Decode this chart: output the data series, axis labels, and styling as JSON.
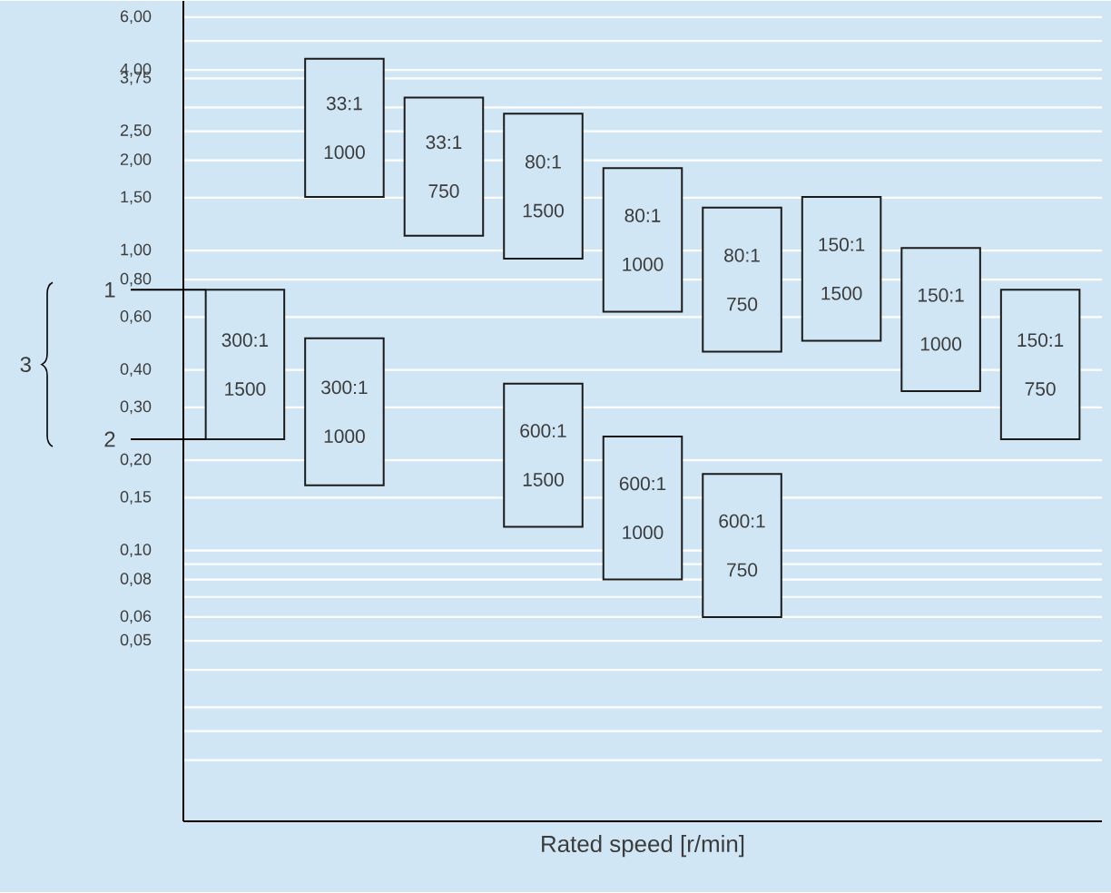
{
  "chart_data": {
    "type": "bar",
    "xlabel": "Rated speed [r/min]",
    "categories": [
      null,
      null,
      null,
      null,
      null,
      null,
      null,
      null,
      null
    ],
    "series": [
      {
        "color": "#1a1a1a",
        "base": [
          0.235,
          1.51,
          1.12,
          0.94,
          0.625,
          0.46,
          0.5,
          0.34,
          0.235
        ],
        "values": [
          0.505,
          2.85,
          2.12,
          1.92,
          1.26,
          0.93,
          1.01,
          0.68,
          0.505
        ],
        "value_labels": [
          "300:1 1500",
          "33:1 1000",
          "33:1 750",
          "80:1 1500",
          "80:1 1000",
          "80:1 750",
          "150:1 1500",
          "150:1 1000",
          "150:1 750"
        ]
      },
      {
        "color": "#1a1a1a",
        "base": [
          null,
          0.165,
          null,
          0.12,
          0.08,
          0.06,
          null,
          null,
          null
        ],
        "values": [
          null,
          0.345,
          null,
          0.24,
          0.16,
          0.12,
          null,
          null,
          null
        ],
        "value_labels": [
          null,
          "300:1 1000",
          null,
          "600:1 1500",
          "600:1 1000",
          "600:1 750",
          null,
          null,
          null
        ]
      }
    ],
    "log": "y",
    "ylim": [
      0.0125,
      6.8
    ],
    "yticks": [
      {
        "value": 0.02,
        "label": null
      },
      {
        "value": 0.025,
        "label": null
      },
      {
        "value": 0.03,
        "label": null
      },
      {
        "value": 0.04,
        "label": null
      },
      {
        "value": 0.05,
        "label": "0,05"
      },
      {
        "value": 0.06,
        "label": "0,06"
      },
      {
        "value": 0.07,
        "label": null
      },
      {
        "value": 0.08,
        "label": "0,08"
      },
      {
        "value": 0.09,
        "label": null
      },
      {
        "value": 0.1,
        "label": "0,10"
      },
      {
        "value": 0.15,
        "label": "0,15"
      },
      {
        "value": 0.2,
        "label": "0,20"
      },
      {
        "value": 0.3,
        "label": "0,30"
      },
      {
        "value": 0.4,
        "label": "0,40"
      },
      {
        "value": 0.6,
        "label": "0,60"
      },
      {
        "value": 0.8,
        "label": "0,80"
      },
      {
        "value": 1,
        "label": "1,00"
      },
      {
        "value": 1.5,
        "label": "1,50"
      },
      {
        "value": 2,
        "label": "2,00"
      },
      {
        "value": 2.5,
        "label": "2,50"
      },
      {
        "value": 3,
        "label": null
      },
      {
        "value": 3.75,
        "label": "3,75"
      },
      {
        "value": 4,
        "label": "4,00"
      },
      {
        "value": 5,
        "label": null
      },
      {
        "value": 6,
        "label": "6,00"
      }
    ],
    "grid": "y",
    "tick_labels": "y",
    "annotations": [
      "1",
      "2",
      "3"
    ]
  }
}
